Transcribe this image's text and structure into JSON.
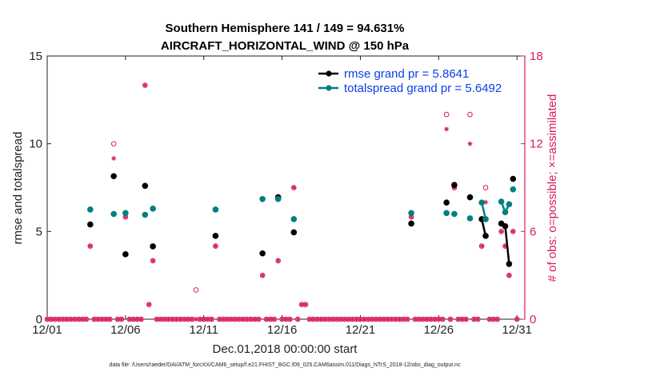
{
  "chart_data": {
    "type": "line",
    "title_line1": "Southern Hemisphere 141 / 149 = 94.631%",
    "title_line2": "AIRCRAFT_HORIZONTAL_WIND @ 150 hPa",
    "xlabel": "Dec.01,2018 00:00:00 start",
    "ylabel_left": "rmse and totalspread",
    "ylabel_right": "# of obs: o=possible; ×=assimilated",
    "footer": "data file: /Users/raeder/DAI/ATM_forcXX/CAM6_setup/f.e21.FHIST_BGC.f09_025.CAM6assim.011/Diags_NTrS_2018-12/obs_diag_output.nc",
    "xlim": [
      1,
      31.5
    ],
    "ylim_left": [
      0,
      15
    ],
    "ylim_right": [
      0,
      18
    ],
    "x_ticks": [
      {
        "v": 1,
        "label": "12/01"
      },
      {
        "v": 6,
        "label": "12/06"
      },
      {
        "v": 11,
        "label": "12/11"
      },
      {
        "v": 16,
        "label": "12/16"
      },
      {
        "v": 21,
        "label": "12/21"
      },
      {
        "v": 26,
        "label": "12/26"
      },
      {
        "v": 31,
        "label": "12/31"
      }
    ],
    "y_left_ticks": [
      {
        "v": 0,
        "label": "0"
      },
      {
        "v": 5,
        "label": "5"
      },
      {
        "v": 10,
        "label": "10"
      },
      {
        "v": 15,
        "label": "15"
      }
    ],
    "y_right_ticks": [
      {
        "v": 0,
        "label": "0"
      },
      {
        "v": 6,
        "label": "6"
      },
      {
        "v": 12,
        "label": "12"
      },
      {
        "v": 18,
        "label": "18"
      }
    ],
    "colors": {
      "rmse": "#000000",
      "spread": "#008080",
      "obs": "#d81b60",
      "legend_text": "#0a3ee6",
      "right_axis": "#d81b60"
    },
    "series": [
      {
        "name": "rmse grand pr = 5.8641",
        "points": [
          [
            3.75,
            5.4
          ],
          [
            5.25,
            8.15
          ],
          [
            6.0,
            3.7
          ],
          [
            7.25,
            7.6
          ],
          [
            7.75,
            4.15
          ],
          [
            11.75,
            4.75
          ],
          [
            14.75,
            3.75
          ],
          [
            15.75,
            6.95
          ],
          [
            16.75,
            4.95
          ],
          [
            24.25,
            5.45
          ],
          [
            26.5,
            6.65
          ],
          [
            27.0,
            7.65
          ],
          [
            28.0,
            6.95
          ],
          [
            28.75,
            5.7
          ],
          [
            29.0,
            4.75
          ],
          [
            30.0,
            5.45
          ],
          [
            30.25,
            5.3
          ],
          [
            30.5,
            3.15
          ],
          [
            30.75,
            8.0
          ]
        ],
        "connected_segments": [
          [
            [
              28.75,
              5.7
            ],
            [
              29.0,
              4.75
            ]
          ],
          [
            [
              30.0,
              5.45
            ],
            [
              30.25,
              5.3
            ],
            [
              30.5,
              3.15
            ]
          ]
        ]
      },
      {
        "name": "totalspread grand pr = 5.6492",
        "points": [
          [
            3.75,
            6.25
          ],
          [
            5.25,
            6.0
          ],
          [
            6.0,
            6.05
          ],
          [
            7.25,
            5.95
          ],
          [
            7.75,
            6.3
          ],
          [
            11.75,
            6.25
          ],
          [
            14.75,
            6.85
          ],
          [
            15.75,
            6.85
          ],
          [
            16.75,
            5.7
          ],
          [
            24.25,
            6.05
          ],
          [
            26.5,
            6.05
          ],
          [
            27.0,
            6.0
          ],
          [
            28.0,
            5.75
          ],
          [
            28.75,
            6.65
          ],
          [
            29.0,
            5.7
          ],
          [
            30.0,
            6.7
          ],
          [
            30.25,
            6.1
          ],
          [
            30.5,
            6.55
          ],
          [
            30.75,
            7.4
          ]
        ],
        "connected_segments": [
          [
            [
              28.75,
              6.65
            ],
            [
              29.0,
              5.7
            ]
          ],
          [
            [
              30.0,
              6.7
            ],
            [
              30.25,
              6.1
            ],
            [
              30.5,
              6.55
            ]
          ]
        ]
      }
    ],
    "obs_possible_nonzero": [
      [
        3.75,
        5
      ],
      [
        5.25,
        12
      ],
      [
        6.0,
        7
      ],
      [
        7.25,
        16
      ],
      [
        7.5,
        1
      ],
      [
        7.75,
        4
      ],
      [
        10.5,
        2
      ],
      [
        11.75,
        5
      ],
      [
        14.75,
        3
      ],
      [
        15.75,
        4
      ],
      [
        17.25,
        1
      ],
      [
        17.5,
        1
      ],
      [
        16.75,
        9
      ],
      [
        24.25,
        7
      ],
      [
        26.5,
        14
      ],
      [
        27.0,
        9
      ],
      [
        28.0,
        14
      ],
      [
        28.75,
        5
      ],
      [
        29.0,
        9
      ],
      [
        30.0,
        6
      ],
      [
        30.25,
        5
      ],
      [
        30.5,
        3
      ],
      [
        30.75,
        6
      ]
    ],
    "obs_assimilated_nonzero": [
      [
        3.75,
        5
      ],
      [
        5.25,
        11
      ],
      [
        6.0,
        7
      ],
      [
        7.25,
        16
      ],
      [
        7.5,
        1
      ],
      [
        7.75,
        4
      ],
      [
        11.75,
        5
      ],
      [
        14.75,
        3
      ],
      [
        15.75,
        4
      ],
      [
        17.25,
        1
      ],
      [
        17.5,
        1
      ],
      [
        16.75,
        9
      ],
      [
        24.25,
        7
      ],
      [
        26.5,
        13
      ],
      [
        27.0,
        9
      ],
      [
        28.0,
        12
      ],
      [
        28.75,
        5
      ],
      [
        29.0,
        8
      ],
      [
        30.0,
        6
      ],
      [
        30.25,
        5
      ],
      [
        30.5,
        3
      ],
      [
        30.75,
        6
      ]
    ],
    "obs_step": 0.25
  }
}
